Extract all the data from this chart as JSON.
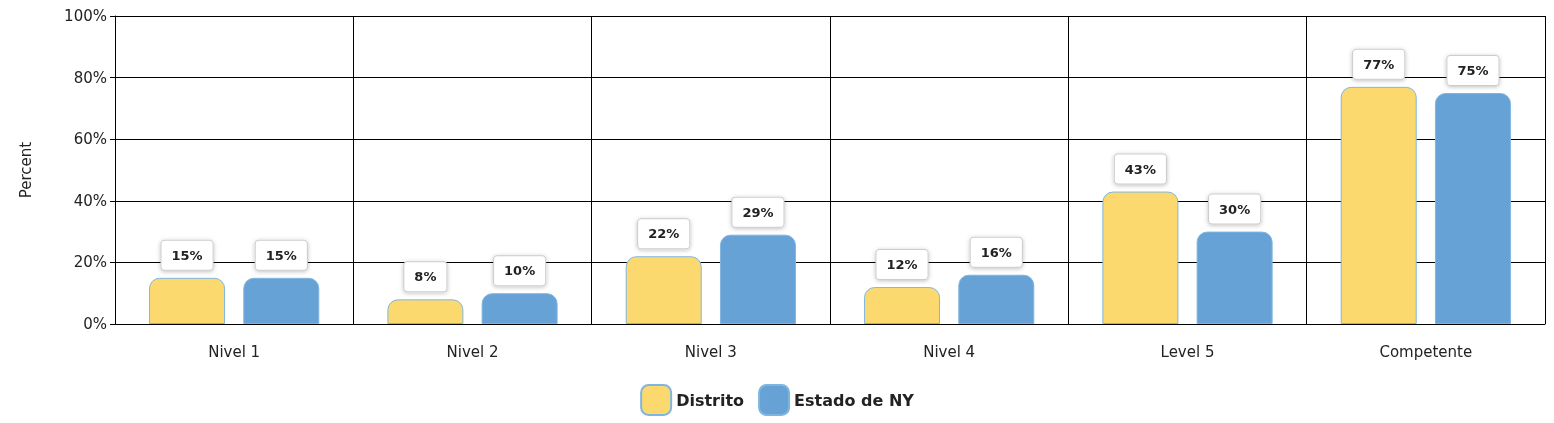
{
  "chart_data": {
    "type": "bar",
    "ylabel": "Percent",
    "categories": [
      "Nivel 1",
      "Nivel 2",
      "Nivel 3",
      "Nivel 4",
      "Level 5",
      "Competente"
    ],
    "series": [
      {
        "name": "Distrito",
        "color": "#fcd96f",
        "values": [
          15,
          8,
          22,
          12,
          43,
          77
        ],
        "value_labels": [
          "15%",
          "8%",
          "22%",
          "12%",
          "43%",
          "77%"
        ]
      },
      {
        "name": "Estado de NY",
        "color": "#67a2d6",
        "values": [
          15,
          10,
          29,
          16,
          30,
          75
        ],
        "value_labels": [
          "15%",
          "10%",
          "29%",
          "16%",
          "30%",
          "75%"
        ]
      }
    ],
    "ylim": [
      0,
      100
    ],
    "yticks": [
      {
        "value": 0,
        "label": "0%"
      },
      {
        "value": 20,
        "label": "20%"
      },
      {
        "value": 40,
        "label": "40%"
      },
      {
        "value": 60,
        "label": "60%"
      },
      {
        "value": 80,
        "label": "80%"
      },
      {
        "value": 100,
        "label": "100%"
      }
    ],
    "grid": true,
    "legend": "bottom"
  }
}
